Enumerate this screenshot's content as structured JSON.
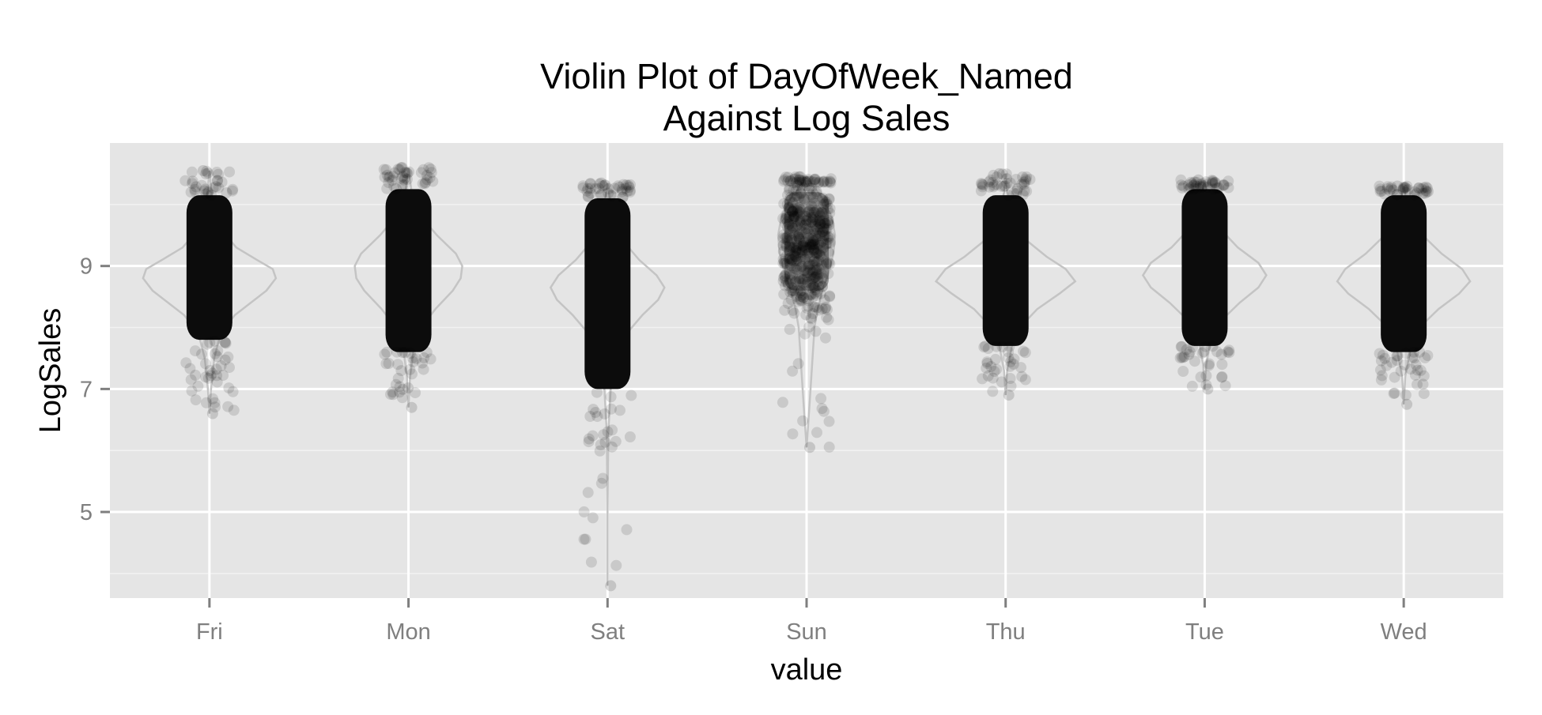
{
  "chart_data": {
    "type": "violin",
    "title_lines": [
      "Violin Plot of DayOfWeek_Named",
      "Against Log Sales"
    ],
    "xlabel": "value",
    "ylabel": "LogSales",
    "ylim": [
      3.6,
      11.0
    ],
    "y_ticks": [
      5,
      7,
      9
    ],
    "y_minor_ticks": [
      4,
      6,
      8,
      10
    ],
    "grid": true,
    "point_alpha": 0.1,
    "categories": [
      "Fri",
      "Mon",
      "Sat",
      "Sun",
      "Thu",
      "Tue",
      "Wed"
    ],
    "series": [
      {
        "name": "Fri",
        "min": 6.6,
        "max": 10.55,
        "core_low": 7.8,
        "core_high": 10.15,
        "peak": 8.8,
        "peak_halfwidth": 0.45,
        "violin": [
          [
            6.6,
            0.0
          ],
          [
            7.0,
            0.01
          ],
          [
            7.5,
            0.03
          ],
          [
            7.9,
            0.07
          ],
          [
            8.2,
            0.16
          ],
          [
            8.4,
            0.26
          ],
          [
            8.6,
            0.36
          ],
          [
            8.8,
            0.42
          ],
          [
            8.95,
            0.4
          ],
          [
            9.1,
            0.3
          ],
          [
            9.3,
            0.17
          ],
          [
            9.6,
            0.07
          ],
          [
            10.0,
            0.02
          ],
          [
            10.55,
            0.0
          ]
        ]
      },
      {
        "name": "Mon",
        "min": 6.7,
        "max": 10.6,
        "core_low": 7.6,
        "core_high": 10.25,
        "peak": 8.9,
        "peak_halfwidth": 0.36,
        "violin": [
          [
            6.7,
            0.0
          ],
          [
            7.2,
            0.01
          ],
          [
            7.6,
            0.03
          ],
          [
            8.0,
            0.08
          ],
          [
            8.3,
            0.17
          ],
          [
            8.6,
            0.28
          ],
          [
            8.8,
            0.33
          ],
          [
            9.0,
            0.34
          ],
          [
            9.2,
            0.3
          ],
          [
            9.5,
            0.18
          ],
          [
            9.8,
            0.08
          ],
          [
            10.2,
            0.02
          ],
          [
            10.6,
            0.0
          ]
        ]
      },
      {
        "name": "Sat",
        "min": 3.8,
        "max": 10.35,
        "core_low": 7.0,
        "core_high": 10.1,
        "peak": 8.6,
        "peak_halfwidth": 0.38,
        "violin": [
          [
            3.8,
            0.0
          ],
          [
            5.0,
            0.0
          ],
          [
            6.3,
            0.005
          ],
          [
            7.0,
            0.02
          ],
          [
            7.5,
            0.05
          ],
          [
            7.9,
            0.12
          ],
          [
            8.2,
            0.22
          ],
          [
            8.45,
            0.32
          ],
          [
            8.65,
            0.36
          ],
          [
            8.85,
            0.31
          ],
          [
            9.1,
            0.2
          ],
          [
            9.4,
            0.1
          ],
          [
            9.8,
            0.03
          ],
          [
            10.35,
            0.0
          ]
        ]
      },
      {
        "name": "Sun",
        "min": 6.05,
        "max": 10.45,
        "core_low": 8.6,
        "core_high": 10.35,
        "peak": 9.4,
        "peak_halfwidth": 0.18,
        "violin": [
          [
            6.05,
            0.0
          ],
          [
            6.8,
            0.02
          ],
          [
            7.2,
            0.03
          ],
          [
            7.6,
            0.04
          ],
          [
            8.0,
            0.05
          ],
          [
            8.3,
            0.07
          ],
          [
            8.6,
            0.1
          ],
          [
            8.9,
            0.14
          ],
          [
            9.2,
            0.17
          ],
          [
            9.5,
            0.18
          ],
          [
            9.8,
            0.16
          ],
          [
            10.1,
            0.1
          ],
          [
            10.45,
            0.0
          ]
        ]
      },
      {
        "name": "Thu",
        "min": 6.9,
        "max": 10.5,
        "core_low": 7.7,
        "core_high": 10.15,
        "peak": 8.75,
        "peak_halfwidth": 0.45,
        "violin": [
          [
            6.9,
            0.0
          ],
          [
            7.3,
            0.01
          ],
          [
            7.7,
            0.04
          ],
          [
            8.0,
            0.09
          ],
          [
            8.3,
            0.2
          ],
          [
            8.55,
            0.34
          ],
          [
            8.75,
            0.44
          ],
          [
            8.95,
            0.38
          ],
          [
            9.15,
            0.26
          ],
          [
            9.4,
            0.14
          ],
          [
            9.8,
            0.05
          ],
          [
            10.2,
            0.01
          ],
          [
            10.5,
            0.0
          ]
        ]
      },
      {
        "name": "Tue",
        "min": 7.0,
        "max": 10.4,
        "core_low": 7.7,
        "core_high": 10.25,
        "peak": 8.8,
        "peak_halfwidth": 0.39,
        "violin": [
          [
            7.0,
            0.0
          ],
          [
            7.4,
            0.01
          ],
          [
            7.8,
            0.04
          ],
          [
            8.1,
            0.1
          ],
          [
            8.4,
            0.22
          ],
          [
            8.65,
            0.34
          ],
          [
            8.85,
            0.39
          ],
          [
            9.05,
            0.34
          ],
          [
            9.3,
            0.21
          ],
          [
            9.6,
            0.1
          ],
          [
            10.0,
            0.03
          ],
          [
            10.4,
            0.0
          ]
        ]
      },
      {
        "name": "Wed",
        "min": 6.75,
        "max": 10.3,
        "core_low": 7.6,
        "core_high": 10.15,
        "peak": 8.75,
        "peak_halfwidth": 0.42,
        "violin": [
          [
            6.75,
            0.0
          ],
          [
            7.2,
            0.01
          ],
          [
            7.6,
            0.04
          ],
          [
            8.0,
            0.1
          ],
          [
            8.3,
            0.22
          ],
          [
            8.55,
            0.35
          ],
          [
            8.75,
            0.42
          ],
          [
            8.95,
            0.37
          ],
          [
            9.2,
            0.24
          ],
          [
            9.5,
            0.12
          ],
          [
            9.9,
            0.03
          ],
          [
            10.3,
            0.0
          ]
        ]
      }
    ]
  }
}
